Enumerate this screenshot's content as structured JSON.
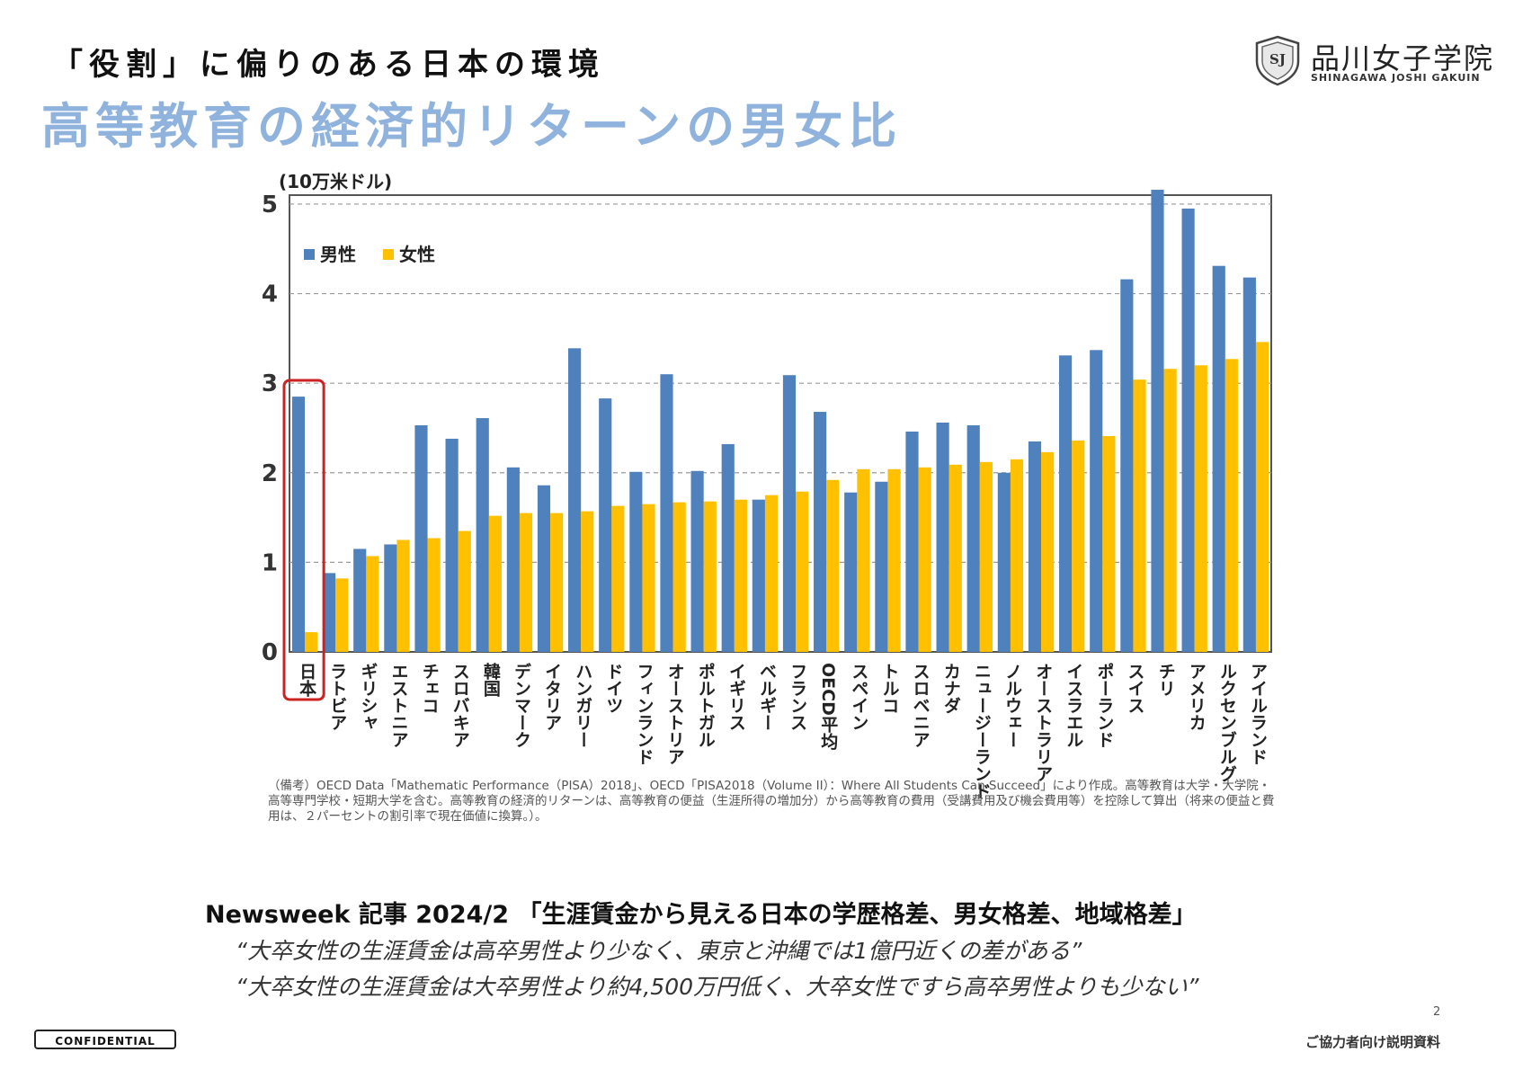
{
  "slide": {
    "subtitle": "「役割」に偏りのある日本の環境",
    "title": "高等教育の経済的リターンの男女比",
    "logo_name": "品川女子学院",
    "logo_sub": "SHINAGAWA JOSHI GAKUIN",
    "logo_mark": "SJ",
    "page_number": "2",
    "confidential": "CONFIDENTIAL",
    "footer": "ご協力者向け説明資料"
  },
  "chart_data": {
    "type": "bar",
    "unit_label": "(10万米ドル)",
    "ylim": [
      0,
      5.1
    ],
    "yticks": [
      0,
      1,
      2,
      3,
      4,
      5
    ],
    "grid": true,
    "legend_position": "top-left",
    "highlight_category": "日本",
    "categories": [
      "日本",
      "ラトビア",
      "ギリシャ",
      "エストニア",
      "チェコ",
      "スロバキア",
      "韓国",
      "デンマーク",
      "イタリア",
      "ハンガリー",
      "ドイツ",
      "フィンランド",
      "オーストリア",
      "ポルトガル",
      "イギリス",
      "ベルギー",
      "フランス",
      "OECD平均",
      "スペイン",
      "トルコ",
      "スロベニア",
      "カナダ",
      "ニュージーランド",
      "ノルウェー",
      "オーストラリア",
      "イスラエル",
      "ポーランド",
      "スイス",
      "チリ",
      "アメリカ",
      "ルクセンブルグ",
      "アイルランド"
    ],
    "series": [
      {
        "name": "男性",
        "color": "#4f81bd",
        "values": [
          2.85,
          0.88,
          1.15,
          1.2,
          2.53,
          2.38,
          2.61,
          2.06,
          1.86,
          3.39,
          2.83,
          2.01,
          3.1,
          2.02,
          2.32,
          1.7,
          3.09,
          2.68,
          1.78,
          1.9,
          2.46,
          2.56,
          2.53,
          2.0,
          2.35,
          3.31,
          3.37,
          4.16,
          5.16,
          4.95,
          4.31,
          4.18
        ]
      },
      {
        "name": "女性",
        "color": "#ffc000",
        "values": [
          0.22,
          0.82,
          1.07,
          1.25,
          1.27,
          1.35,
          1.52,
          1.55,
          1.55,
          1.57,
          1.63,
          1.65,
          1.67,
          1.68,
          1.7,
          1.75,
          1.79,
          1.92,
          2.04,
          2.04,
          2.06,
          2.09,
          2.12,
          2.15,
          2.23,
          2.36,
          2.41,
          3.04,
          3.16,
          3.2,
          3.27,
          3.46
        ]
      }
    ],
    "source_note": "（備考）OECD Data「Mathematic Performance（PISA）2018」、OECD「PISA2018（Volume II）：Where All Students Can Succeed」により作成。高等教育は大学・大学院・高等専門学校・短期大学を含む。高等教育の経済的リターンは、高等教育の便益（生涯所得の増加分）から高等教育の費用（受講費用及び機会費用等）を控除して算出（将来の便益と費用は、２パーセントの割引率で現在価値に換算。）。"
  },
  "news": {
    "title": "Newsweek 記事 2024/2 「生涯賃金から見える日本の学歴格差、男女格差、地域格差」",
    "quote1": "“大卒女性の生涯賃金は高卒男性より少なく、東京と沖縄では1億円近くの差がある”",
    "quote2": "“大卒女性の生涯賃金は大卒男性より約4,500万円低く、大卒女性ですら高卒男性よりも少ない”"
  }
}
